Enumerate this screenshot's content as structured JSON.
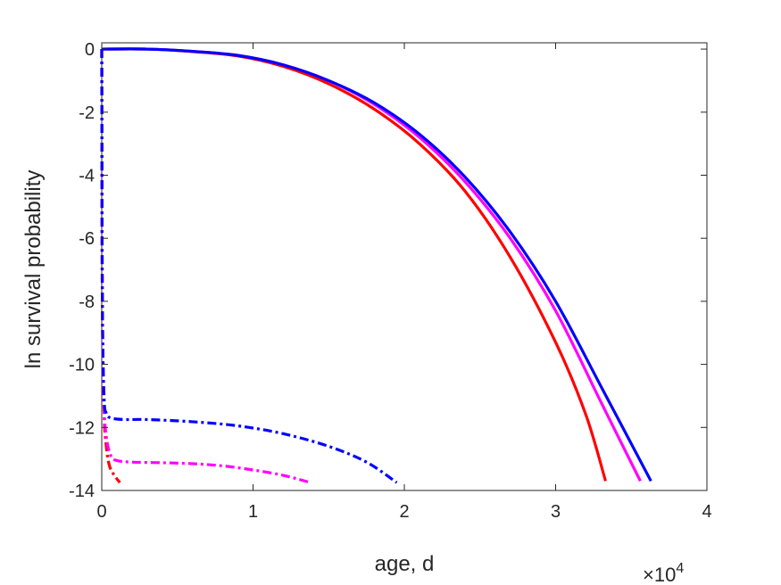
{
  "chart_data": {
    "type": "line",
    "xlabel": "age, d",
    "ylabel": "ln survival probability",
    "x_exponent_label": "×10",
    "x_exponent_power": "4",
    "xlim": [
      0,
      40000
    ],
    "ylim": [
      -14,
      0.2
    ],
    "xticks": [
      0,
      10000,
      20000,
      30000,
      40000
    ],
    "xtick_labels": [
      "0",
      "1",
      "2",
      "3",
      "4"
    ],
    "yticks": [
      0,
      -2,
      -4,
      -6,
      -8,
      -10,
      -12,
      -14
    ],
    "ytick_labels": [
      "0",
      "-2",
      "-4",
      "-6",
      "-8",
      "-10",
      "-12",
      "-14"
    ],
    "grid": false,
    "legend": "none",
    "series": [
      {
        "color": "#ff0000",
        "style": "solid",
        "points": [
          [
            0,
            0
          ],
          [
            3000,
            0
          ],
          [
            6000,
            -0.08
          ],
          [
            9000,
            -0.22
          ],
          [
            12000,
            -0.55
          ],
          [
            15000,
            -1.1
          ],
          [
            18000,
            -1.9
          ],
          [
            21000,
            -3.0
          ],
          [
            24000,
            -4.5
          ],
          [
            27000,
            -6.6
          ],
          [
            30000,
            -9.3
          ],
          [
            32000,
            -11.6
          ],
          [
            33300,
            -13.7
          ]
        ]
      },
      {
        "color": "#ff00ff",
        "style": "solid",
        "points": [
          [
            0,
            0
          ],
          [
            3000,
            0
          ],
          [
            6000,
            -0.07
          ],
          [
            9000,
            -0.2
          ],
          [
            12000,
            -0.5
          ],
          [
            15000,
            -1.0
          ],
          [
            18000,
            -1.75
          ],
          [
            21000,
            -2.8
          ],
          [
            24000,
            -4.2
          ],
          [
            27000,
            -6.0
          ],
          [
            30000,
            -8.3
          ],
          [
            33000,
            -11.2
          ],
          [
            35600,
            -13.7
          ]
        ]
      },
      {
        "color": "#0000ff",
        "style": "solid",
        "points": [
          [
            0,
            0
          ],
          [
            3000,
            0
          ],
          [
            6000,
            -0.07
          ],
          [
            9000,
            -0.2
          ],
          [
            12000,
            -0.5
          ],
          [
            15000,
            -1.0
          ],
          [
            18000,
            -1.7
          ],
          [
            21000,
            -2.7
          ],
          [
            24000,
            -4.05
          ],
          [
            27000,
            -5.8
          ],
          [
            30000,
            -8.0
          ],
          [
            33000,
            -10.7
          ],
          [
            36300,
            -13.7
          ]
        ]
      },
      {
        "color": "#ff0000",
        "style": "dashdot",
        "points": [
          [
            0,
            0
          ],
          [
            40,
            -8
          ],
          [
            150,
            -11.5
          ],
          [
            300,
            -12.6
          ],
          [
            500,
            -13.2
          ],
          [
            800,
            -13.5
          ],
          [
            1200,
            -13.75
          ]
        ]
      },
      {
        "color": "#ff00ff",
        "style": "dashdot",
        "points": [
          [
            0,
            0
          ],
          [
            40,
            -8
          ],
          [
            150,
            -11.2
          ],
          [
            300,
            -12.3
          ],
          [
            600,
            -12.9
          ],
          [
            1000,
            -13.05
          ],
          [
            2000,
            -13.1
          ],
          [
            4000,
            -13.12
          ],
          [
            6000,
            -13.15
          ],
          [
            8000,
            -13.22
          ],
          [
            10000,
            -13.35
          ],
          [
            12000,
            -13.52
          ],
          [
            13800,
            -13.75
          ]
        ]
      },
      {
        "color": "#0000ff",
        "style": "dashdot",
        "points": [
          [
            0,
            0
          ],
          [
            40,
            -8
          ],
          [
            150,
            -11.0
          ],
          [
            300,
            -11.55
          ],
          [
            600,
            -11.7
          ],
          [
            1500,
            -11.75
          ],
          [
            3000,
            -11.75
          ],
          [
            6000,
            -11.82
          ],
          [
            9000,
            -11.95
          ],
          [
            12000,
            -12.2
          ],
          [
            15000,
            -12.6
          ],
          [
            17500,
            -13.1
          ],
          [
            19500,
            -13.75
          ]
        ]
      }
    ]
  }
}
